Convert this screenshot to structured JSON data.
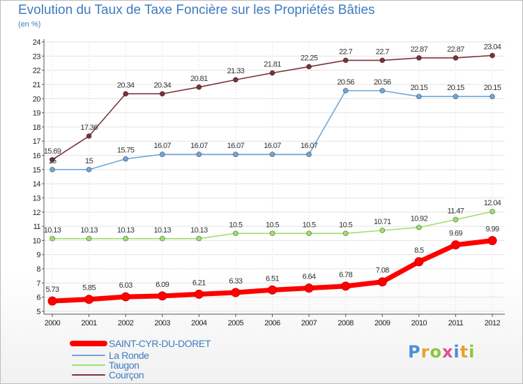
{
  "title": "Evolution du Taux de Taxe Foncière sur les Propriétés Bâties",
  "unit": "(en %)",
  "logo": "Proxiti",
  "colors": {
    "SAINT-CYR-DU-DORET": "#ff0000",
    "La Ronde": "#6fa7d6",
    "Taugon": "#9ee06a",
    "Courçon": "#7a3338"
  },
  "chart_data": {
    "type": "line",
    "title": "Evolution du Taux de Taxe Foncière sur les Propriétés Bâties",
    "ylabel": "(en %)",
    "xlabel": "",
    "ylim": [
      5,
      24
    ],
    "grid": true,
    "legend": "bottom-left",
    "x": [
      "2000",
      "2001",
      "2002",
      "2003",
      "2004",
      "2005",
      "2006",
      "2007",
      "2008",
      "2009",
      "2010",
      "2011",
      "2012"
    ],
    "yticks": [
      "5",
      "6",
      "7",
      "8",
      "9",
      "10",
      "11",
      "12",
      "13",
      "14",
      "15",
      "16",
      "17",
      "18",
      "19",
      "20",
      "21",
      "22",
      "23",
      "24"
    ],
    "series": [
      {
        "name": "SAINT-CYR-DU-DORET",
        "values": [
          5.73,
          5.85,
          6.03,
          6.09,
          6.21,
          6.33,
          6.51,
          6.64,
          6.78,
          7.08,
          8.5,
          9.69,
          9.99
        ],
        "labels": [
          "5.73",
          "5.85",
          "6.03",
          "6.09",
          "6.21",
          "6.33",
          "6.51",
          "6.64",
          "6.78",
          "7.08",
          "8.5",
          "9.69",
          "9.99"
        ]
      },
      {
        "name": "La Ronde",
        "values": [
          15,
          15,
          15.75,
          16.07,
          16.07,
          16.07,
          16.07,
          16.07,
          20.56,
          20.56,
          20.15,
          20.15,
          20.15
        ],
        "labels": [
          "15",
          "15",
          "15.75",
          "16.07",
          "16.07",
          "16.07",
          "16.07",
          "16.07",
          "20.56",
          "20.56",
          "20.15",
          "20.15",
          "20.15"
        ]
      },
      {
        "name": "Taugon",
        "values": [
          10.13,
          10.13,
          10.13,
          10.13,
          10.13,
          10.5,
          10.5,
          10.5,
          10.5,
          10.71,
          10.92,
          11.47,
          12.04
        ],
        "labels": [
          "10.13",
          "10.13",
          "10.13",
          "10.13",
          "10.13",
          "10.5",
          "10.5",
          "10.5",
          "10.5",
          "10.71",
          "10.92",
          "11.47",
          "12.04"
        ]
      },
      {
        "name": "Courçon",
        "values": [
          15.69,
          17.36,
          20.34,
          20.34,
          20.81,
          21.33,
          21.81,
          22.25,
          22.7,
          22.7,
          22.87,
          22.87,
          23.04
        ],
        "labels": [
          "15.69",
          "17.36",
          "20.34",
          "20.34",
          "20.81",
          "21.33",
          "21.81",
          "22.25",
          "22.7",
          "22.7",
          "22.87",
          "22.87",
          "23.04"
        ]
      }
    ]
  }
}
